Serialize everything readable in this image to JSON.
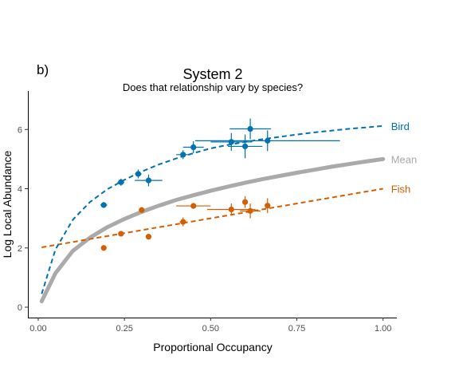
{
  "panel_label": "b)",
  "chart_data": {
    "type": "scatter",
    "title": "System 2",
    "subtitle": "Does that relationship vary by species?",
    "xlabel": "Proportional Occupancy",
    "ylabel": "Log Local Abundance",
    "xlim": [
      -0.03,
      1.04
    ],
    "ylim": [
      -0.35,
      7.3
    ],
    "x_ticks": [
      0.0,
      0.25,
      0.5,
      0.75,
      1.0
    ],
    "x_tick_labels": [
      "0.00",
      "0.25",
      "0.50",
      "0.75",
      "1.00"
    ],
    "y_ticks": [
      0,
      2,
      4,
      6
    ],
    "y_tick_labels": [
      "0",
      "2",
      "4",
      "6"
    ],
    "grid": false,
    "series": [
      {
        "name": "Bird",
        "color": "#0072B2",
        "points": [
          {
            "x": 0.19,
            "y": 3.45,
            "xerr": 0.01,
            "yerr": 0.1
          },
          {
            "x": 0.24,
            "y": 4.22,
            "xerr": 0.01,
            "yerr": 0.12
          },
          {
            "x": 0.29,
            "y": 4.5,
            "xerr": 0.01,
            "yerr": 0.15
          },
          {
            "x": 0.32,
            "y": 4.28,
            "xerr": 0.04,
            "yerr": 0.2
          },
          {
            "x": 0.42,
            "y": 5.15,
            "xerr": 0.02,
            "yerr": 0.15
          },
          {
            "x": 0.45,
            "y": 5.4,
            "xerr": 0.03,
            "yerr": 0.2
          },
          {
            "x": 0.56,
            "y": 5.58,
            "xerr": 0.06,
            "yerr": 0.3
          },
          {
            "x": 0.6,
            "y": 5.43,
            "xerr": 0.05,
            "yerr": 0.4
          },
          {
            "x": 0.615,
            "y": 6.02,
            "xerr": 0.06,
            "yerr": 0.35
          },
          {
            "x": 0.665,
            "y": 5.62,
            "xerr": 0.21,
            "yerr": 0.35
          }
        ],
        "curve_x": [
          0.01,
          0.05,
          0.1,
          0.15,
          0.2,
          0.25,
          0.3,
          0.35,
          0.4,
          0.45,
          0.5,
          0.55,
          0.6,
          0.65,
          0.7,
          0.75,
          0.8,
          0.85,
          0.9,
          0.95,
          1.0
        ],
        "curve_y": [
          0.45,
          1.95,
          2.95,
          3.55,
          3.98,
          4.3,
          4.58,
          4.82,
          5.02,
          5.2,
          5.36,
          5.48,
          5.58,
          5.67,
          5.75,
          5.83,
          5.9,
          5.96,
          6.02,
          6.07,
          6.12
        ]
      },
      {
        "name": "Mean",
        "color": "#aaaaaa",
        "curve_x": [
          0.01,
          0.05,
          0.1,
          0.15,
          0.2,
          0.25,
          0.3,
          0.35,
          0.4,
          0.45,
          0.5,
          0.55,
          0.6,
          0.65,
          0.7,
          0.75,
          0.8,
          0.85,
          0.9,
          0.95,
          1.0
        ],
        "curve_y": [
          0.2,
          1.15,
          1.9,
          2.35,
          2.7,
          2.98,
          3.22,
          3.43,
          3.62,
          3.78,
          3.93,
          4.07,
          4.2,
          4.32,
          4.43,
          4.54,
          4.64,
          4.74,
          4.83,
          4.92,
          5.0
        ]
      },
      {
        "name": "Fish",
        "color": "#D55E00",
        "points": [
          {
            "x": 0.19,
            "y": 2.0,
            "xerr": 0.0,
            "yerr": 0.0
          },
          {
            "x": 0.24,
            "y": 2.48,
            "xerr": 0.0,
            "yerr": 0.0
          },
          {
            "x": 0.3,
            "y": 3.28,
            "xerr": 0.0,
            "yerr": 0.0
          },
          {
            "x": 0.32,
            "y": 2.38,
            "xerr": 0.0,
            "yerr": 0.0
          },
          {
            "x": 0.42,
            "y": 2.88,
            "xerr": 0.01,
            "yerr": 0.15
          },
          {
            "x": 0.45,
            "y": 3.42,
            "xerr": 0.05,
            "yerr": 0.1
          },
          {
            "x": 0.56,
            "y": 3.3,
            "xerr": 0.07,
            "yerr": 0.2
          },
          {
            "x": 0.6,
            "y": 3.55,
            "xerr": 0.0,
            "yerr": 0.2
          },
          {
            "x": 0.615,
            "y": 3.25,
            "xerr": 0.03,
            "yerr": 0.25
          },
          {
            "x": 0.665,
            "y": 3.43,
            "xerr": 0.0,
            "yerr": 0.25
          }
        ],
        "curve_x": [
          0.01,
          1.0
        ],
        "curve_y": [
          2.02,
          4.0
        ]
      }
    ]
  }
}
